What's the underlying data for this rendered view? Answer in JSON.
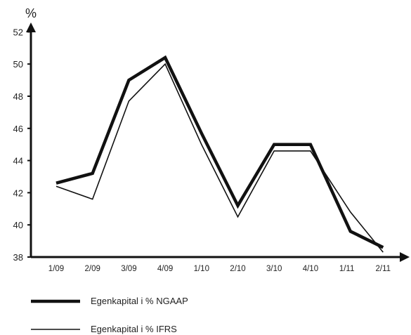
{
  "chart_data": {
    "type": "line",
    "ylabel": "%",
    "ylim": [
      38,
      52
    ],
    "yticks": [
      38,
      40,
      42,
      44,
      46,
      48,
      50,
      52
    ],
    "categories": [
      "1/09",
      "2/09",
      "3/09",
      "4/09",
      "1/10",
      "2/10",
      "3/10",
      "4/10",
      "1/11",
      "2/11"
    ],
    "x_positions": [
      1,
      2,
      3,
      4,
      5,
      6,
      7,
      8,
      9,
      10
    ],
    "series": [
      {
        "name": "Egenkapital i % NGAAP",
        "color": "#111111",
        "style": "thick",
        "points": [
          [
            1,
            42.6
          ],
          [
            2,
            43.2
          ],
          [
            3,
            49.0
          ],
          [
            4,
            50.4
          ],
          [
            5,
            45.7
          ],
          [
            6,
            41.2
          ],
          [
            7,
            45.0
          ],
          [
            8,
            45.0
          ],
          [
            9.1,
            39.6
          ],
          [
            10,
            38.6
          ]
        ]
      },
      {
        "name": "Egenkapital i % IFRS",
        "color": "#111111",
        "style": "thin",
        "points": [
          [
            1,
            42.4
          ],
          [
            2,
            41.6
          ],
          [
            3,
            47.7
          ],
          [
            4,
            50.0
          ],
          [
            5,
            45.0
          ],
          [
            6,
            40.5
          ],
          [
            7,
            44.6
          ],
          [
            8,
            44.6
          ],
          [
            9.1,
            40.8
          ],
          [
            10,
            38.3
          ]
        ]
      }
    ],
    "grid": false,
    "legend_position": "bottom-left"
  }
}
